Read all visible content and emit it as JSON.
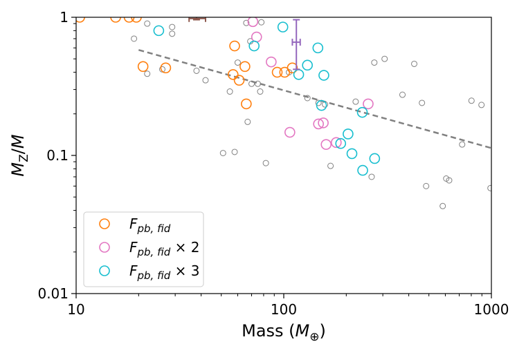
{
  "chart_data": {
    "type": "scatter",
    "xscale": "log",
    "yscale": "log",
    "xlim": [
      10,
      1000
    ],
    "ylim": [
      0.01,
      1
    ],
    "xlabel": {
      "prefix": "Mass (",
      "var": "M",
      "sub": "⊕",
      "suffix": ")"
    },
    "ylabel": {
      "var": "M",
      "sub": "Z",
      "mid": "/",
      "var2": "M"
    },
    "xticks": [
      {
        "value": 10,
        "label": "10"
      },
      {
        "value": 100,
        "label": "100"
      },
      {
        "value": 1000,
        "label": "1000"
      }
    ],
    "yticks": [
      {
        "value": 0.01,
        "label": "0.01"
      },
      {
        "value": 0.1,
        "label": "0.1"
      },
      {
        "value": 1,
        "label": "1"
      }
    ],
    "trend_line": {
      "color": "#808080",
      "x": [
        20,
        1000
      ],
      "y": [
        0.58,
        0.113
      ]
    },
    "background_points": {
      "color": "#808080",
      "points": [
        [
          19,
          0.7
        ],
        [
          22,
          0.9
        ],
        [
          22,
          0.39
        ],
        [
          26,
          0.42
        ],
        [
          29,
          0.85
        ],
        [
          29,
          0.76
        ],
        [
          38,
          0.41
        ],
        [
          42,
          0.35
        ],
        [
          51,
          0.104
        ],
        [
          55,
          0.29
        ],
        [
          58,
          0.106
        ],
        [
          60,
          0.47
        ],
        [
          66,
          0.91
        ],
        [
          67,
          0.175
        ],
        [
          69,
          0.67
        ],
        [
          70,
          0.33
        ],
        [
          75,
          0.33
        ],
        [
          77,
          0.29
        ],
        [
          82,
          0.088
        ],
        [
          78,
          0.92
        ],
        [
          106,
          0.4
        ],
        [
          130,
          0.26
        ],
        [
          147,
          0.24
        ],
        [
          158,
          0.234
        ],
        [
          168,
          0.084
        ],
        [
          222,
          0.245
        ],
        [
          265,
          0.07
        ],
        [
          273,
          0.47
        ],
        [
          306,
          0.5
        ],
        [
          373,
          0.275
        ],
        [
          425,
          0.46
        ],
        [
          463,
          0.24
        ],
        [
          485,
          0.06
        ],
        [
          583,
          0.043
        ],
        [
          606,
          0.068
        ],
        [
          626,
          0.066
        ],
        [
          723,
          0.12
        ],
        [
          802,
          0.249
        ],
        [
          896,
          0.232
        ],
        [
          990,
          0.058
        ]
      ]
    },
    "series": [
      {
        "name": "fid",
        "color": "#ff7f0e",
        "points": [
          [
            10.4,
            1.0
          ],
          [
            15.5,
            1.0
          ],
          [
            18,
            1.0
          ],
          [
            19.5,
            1.0
          ],
          [
            21,
            0.44
          ],
          [
            27,
            0.43
          ],
          [
            57,
            0.385
          ],
          [
            58,
            0.62
          ],
          [
            61,
            0.35
          ],
          [
            65,
            0.44
          ],
          [
            66,
            0.236
          ],
          [
            93,
            0.4
          ],
          [
            101,
            0.4
          ],
          [
            110,
            0.43
          ]
        ]
      },
      {
        "name": "fid x2",
        "color": "#e377c2",
        "points": [
          [
            71,
            0.93
          ],
          [
            74,
            0.72
          ],
          [
            87,
            0.475
          ],
          [
            107,
            0.147
          ],
          [
            147,
            0.169
          ],
          [
            155,
            0.172
          ],
          [
            160,
            0.12
          ],
          [
            179,
            0.124
          ],
          [
            255,
            0.236
          ]
        ]
      },
      {
        "name": "fid x3",
        "color": "#17becf",
        "points": [
          [
            25,
            0.8
          ],
          [
            72,
            0.62
          ],
          [
            99,
            0.85
          ],
          [
            118,
            0.385
          ],
          [
            130,
            0.45
          ],
          [
            146,
            0.6
          ],
          [
            152,
            0.23
          ],
          [
            156,
            0.38
          ],
          [
            188,
            0.122
          ],
          [
            204,
            0.143
          ],
          [
            213,
            0.103
          ],
          [
            240,
            0.078
          ],
          [
            239,
            0.205
          ],
          [
            274,
            0.095
          ]
        ]
      }
    ],
    "error_bars": [
      {
        "color": "#8c564b",
        "x": 38,
        "x_err": [
          35,
          42
        ],
        "y": 0.98,
        "y_err": [
          0.96,
          1.05
        ]
      },
      {
        "color": "#9467bd",
        "x": 115,
        "x_err": [
          110,
          120
        ],
        "y": 0.66,
        "y_err": [
          0.42,
          0.96
        ]
      }
    ],
    "legend": {
      "position": "lower-left",
      "entries": [
        {
          "series": "fid",
          "base": "F",
          "sub": "pb, fid",
          "suffix": ""
        },
        {
          "series": "fid x2",
          "base": "F",
          "sub": "pb, fid",
          "suffix": " × 2"
        },
        {
          "series": "fid x3",
          "base": "F",
          "sub": "pb, fid",
          "suffix": " × 3"
        }
      ]
    }
  }
}
